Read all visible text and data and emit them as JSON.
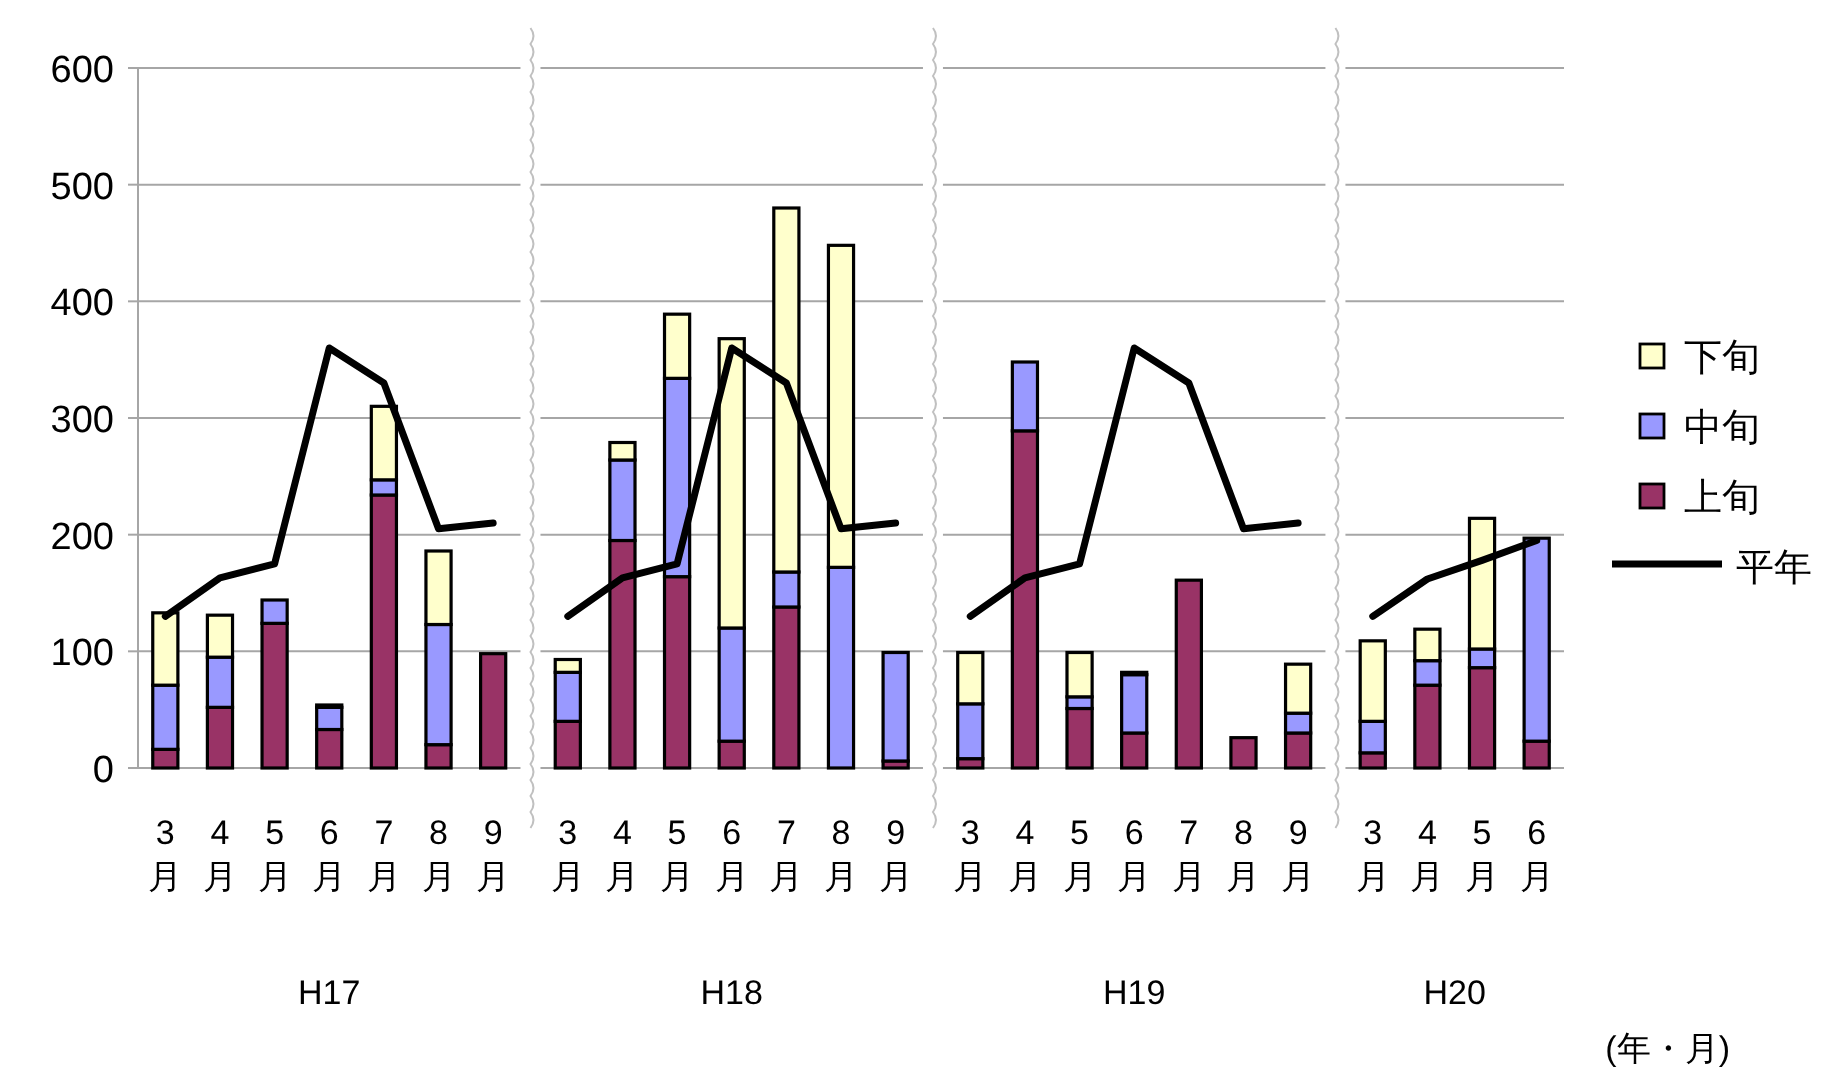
{
  "chart_data": [
    {
      "type": "bar",
      "stacked": true,
      "categories": [
        "3月",
        "4月",
        "5月",
        "6月",
        "7月",
        "8月",
        "9月"
      ],
      "xlabel": "H17",
      "ylim": [
        0,
        600
      ],
      "yticks": [
        0,
        100,
        200,
        300,
        400,
        500,
        600
      ],
      "grid": "y",
      "series": [
        {
          "color": "#993366",
          "values": [
            16,
            52,
            124,
            33,
            234,
            20,
            98
          ]
        },
        {
          "color": "#9999ff",
          "values": [
            55,
            43,
            20,
            19,
            13,
            103,
            0
          ]
        },
        {
          "color": "#ffffcc",
          "values": [
            62,
            36,
            0,
            2,
            63,
            63,
            0
          ]
        },
        {
          "type": "line",
          "color": "#000000",
          "values": [
            130,
            163,
            175,
            360,
            330,
            205,
            210
          ]
        }
      ]
    },
    {
      "type": "bar",
      "stacked": true,
      "categories": [
        "3月",
        "4月",
        "5月",
        "6月",
        "7月",
        "8月",
        "9月"
      ],
      "xlabel": "H18",
      "ylim": [
        0,
        600
      ],
      "yticks": [
        0,
        100,
        200,
        300,
        400,
        500,
        600
      ],
      "grid": "y",
      "tick_labels": "x",
      "series": [
        {
          "color": "#993366",
          "values": [
            40,
            195,
            164,
            23,
            138,
            0,
            6
          ]
        },
        {
          "color": "#9999ff",
          "values": [
            42,
            69,
            170,
            97,
            30,
            172,
            93
          ]
        },
        {
          "color": "#ffffcc",
          "values": [
            11,
            15,
            55,
            248,
            312,
            276,
            0
          ]
        },
        {
          "type": "line",
          "color": "#000000",
          "values": [
            130,
            163,
            175,
            360,
            330,
            205,
            210
          ]
        }
      ]
    },
    {
      "type": "bar",
      "stacked": true,
      "categories": [
        "3月",
        "4月",
        "5月",
        "6月",
        "7月",
        "8月",
        "9月"
      ],
      "xlabel": "H19",
      "ylim": [
        0,
        600
      ],
      "yticks": [
        0,
        100,
        200,
        300,
        400,
        500,
        600
      ],
      "grid": "y",
      "tick_labels": "x",
      "series": [
        {
          "color": "#993366",
          "values": [
            8,
            289,
            51,
            30,
            161,
            26,
            30
          ]
        },
        {
          "color": "#9999ff",
          "values": [
            47,
            59,
            10,
            50,
            0,
            0,
            17
          ]
        },
        {
          "color": "#ffffcc",
          "values": [
            44,
            0,
            38,
            2,
            0,
            0,
            42
          ]
        },
        {
          "type": "line",
          "color": "#000000",
          "values": [
            130,
            163,
            175,
            360,
            330,
            205,
            210
          ]
        }
      ]
    },
    {
      "type": "bar",
      "stacked": true,
      "categories": [
        "3月",
        "4月",
        "5月",
        "6月"
      ],
      "xlabel": "H20",
      "ylim": [
        0,
        600
      ],
      "yticks": [
        0,
        100,
        200,
        300,
        400,
        500,
        600
      ],
      "grid": "y",
      "tick_labels": "x",
      "legend": "right",
      "annotations": [
        "(年・月)"
      ],
      "series": [
        {
          "name": "上旬",
          "color": "#993366",
          "values": [
            13,
            71,
            86,
            23
          ]
        },
        {
          "name": "中旬",
          "color": "#9999ff",
          "values": [
            27,
            21,
            16,
            174
          ]
        },
        {
          "name": "下旬",
          "color": "#ffffcc",
          "values": [
            69,
            27,
            112,
            0
          ]
        },
        {
          "name": "平年",
          "type": "line",
          "color": "#000000",
          "values": [
            130,
            162,
            178,
            195
          ]
        }
      ]
    }
  ]
}
